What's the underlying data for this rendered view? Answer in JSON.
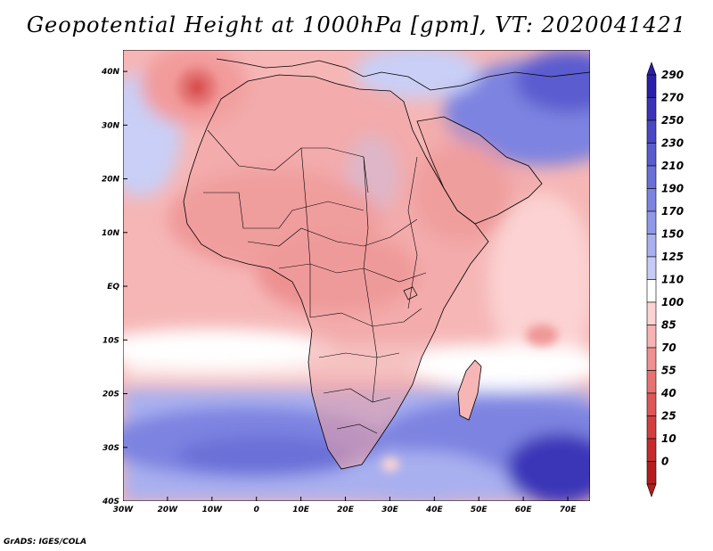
{
  "title": "Geopotential Height at 1000hPa [gpm], VT: 2020041421",
  "credit": "GrADS: IGES/COLA",
  "map": {
    "lon_ticks": [
      "30W",
      "20W",
      "10W",
      "0",
      "10E",
      "20E",
      "30E",
      "40E",
      "50E",
      "60E",
      "70E"
    ],
    "lat_ticks": [
      "40N",
      "30N",
      "20N",
      "10N",
      "EQ",
      "10S",
      "20S",
      "30S",
      "40S"
    ],
    "lon_range": [
      -30,
      75
    ],
    "lat_range": [
      -40,
      44
    ]
  },
  "colorbar": {
    "levels": [
      "290",
      "270",
      "250",
      "230",
      "210",
      "190",
      "170",
      "150",
      "125",
      "110",
      "100",
      "85",
      "70",
      "55",
      "40",
      "25",
      "10",
      "0"
    ],
    "colors": [
      "#2a1fa8",
      "#3b34b8",
      "#4a47c4",
      "#5a5bcf",
      "#6b6fd8",
      "#7d83e0",
      "#9098e8",
      "#a9b0ef",
      "#c5cbf5",
      "#ffffff",
      "#fbd3d3",
      "#f6b3b3",
      "#ef9191",
      "#e77272",
      "#de5757",
      "#d33f3f",
      "#c62b2b",
      "#b31d1d"
    ]
  },
  "colors": {
    "ocean_high": "#5a5bcf",
    "land": "#f0a0a0",
    "boundary": "#000000"
  }
}
